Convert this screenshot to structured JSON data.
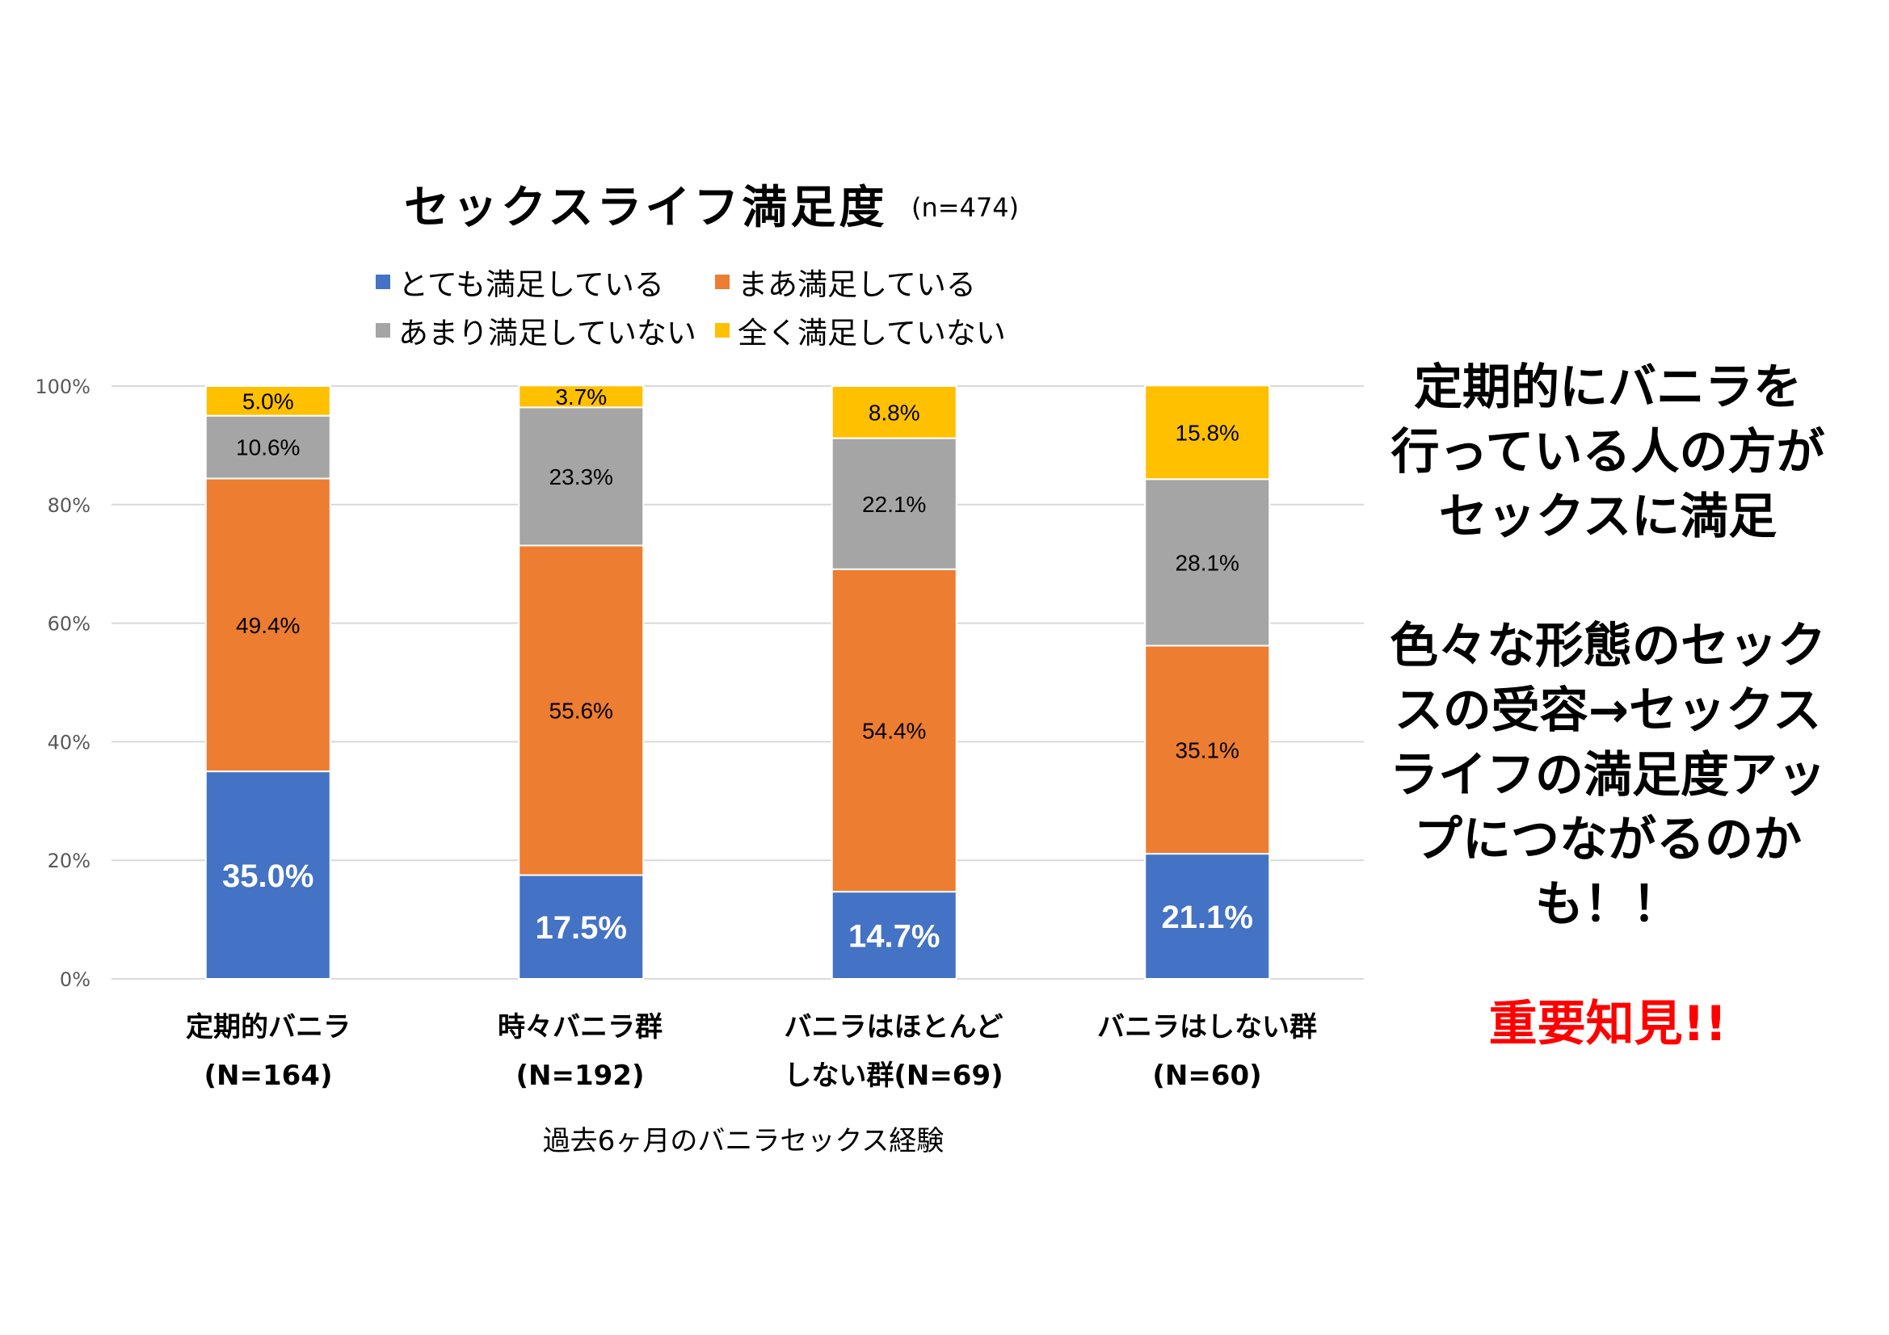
{
  "chart_data": {
    "type": "bar",
    "stacked": true,
    "title": "セックスライフ満足度",
    "subtitle": "(n=474)",
    "xlabel": "過去6ヶ月のバニラセックス経験",
    "ylabel": "",
    "ylim": [
      0,
      100
    ],
    "yticks": [
      "0%",
      "20%",
      "40%",
      "60%",
      "80%",
      "100%"
    ],
    "grid": true,
    "legend_position": "top",
    "categories": [
      [
        "定期的バニラ",
        "(N=164)"
      ],
      [
        "時々バニラ群",
        "(N=192)"
      ],
      [
        "バニラはほとんど",
        "しない群(N=69)"
      ],
      [
        "バニラはしない群",
        "(N=60)"
      ]
    ],
    "series": [
      {
        "name": "とても満足している",
        "color": "#4472C4",
        "values": [
          35.0,
          17.5,
          14.7,
          21.1
        ],
        "labels": [
          "35.0%",
          "17.5%",
          "14.7%",
          "21.1%"
        ]
      },
      {
        "name": "まあ満足している",
        "color": "#ED7D31",
        "values": [
          49.4,
          55.6,
          54.4,
          35.1
        ],
        "labels": [
          "49.4%",
          "55.6%",
          "54.4%",
          "35.1%"
        ]
      },
      {
        "name": "あまり満足していない",
        "color": "#A5A5A5",
        "values": [
          10.6,
          23.3,
          22.1,
          28.1
        ],
        "labels": [
          "10.6%",
          "23.3%",
          "22.1%",
          "28.1%"
        ]
      },
      {
        "name": "全く満足していない",
        "color": "#FFC000",
        "values": [
          5.0,
          3.7,
          8.8,
          15.8
        ],
        "labels": [
          "5.0%",
          "3.7%",
          "8.8%",
          "15.8%"
        ]
      }
    ]
  },
  "commentary": {
    "paragraph1": [
      "定期的にバニラを",
      "行っている人の方が",
      "セックスに満足"
    ],
    "paragraph2": [
      "色々な形態のセック",
      "スの受容→セックス",
      "ライフの満足度アッ",
      "プにつながるのか",
      "も！！"
    ],
    "finding": "重要知見!!",
    "finding_color": "#FF0000"
  }
}
